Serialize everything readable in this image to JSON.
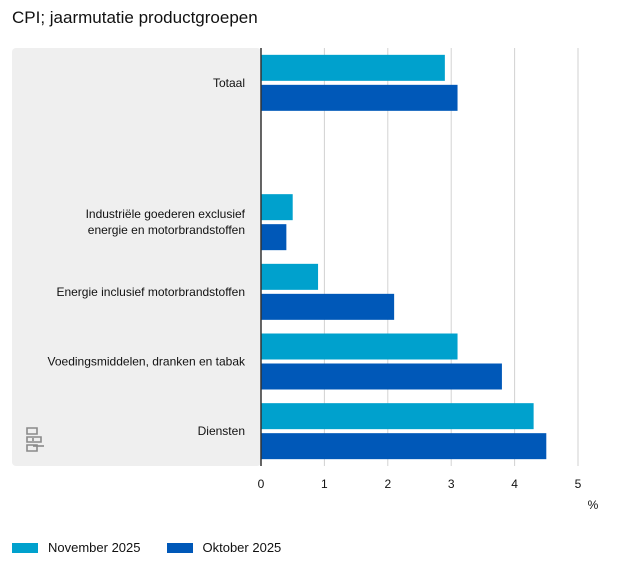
{
  "title": "CPI; jaarmutatie productgroepen",
  "chart_data": {
    "type": "bar",
    "orientation": "horizontal",
    "title": "CPI; jaarmutatie productgroepen",
    "categories": [
      {
        "label": [
          "Totaal"
        ]
      },
      {
        "label": [
          ""
        ]
      },
      {
        "label": [
          "Industriële goederen exclusief",
          "energie en motorbrandstoffen"
        ]
      },
      {
        "label": [
          "Energie inclusief motorbrandstoffen"
        ]
      },
      {
        "label": [
          "Voedingsmiddelen, dranken en tabak"
        ]
      },
      {
        "label": [
          "Diensten"
        ]
      }
    ],
    "series": [
      {
        "name": "November 2025",
        "color": "#00a1cd",
        "values": [
          2.9,
          null,
          0.5,
          0.9,
          3.1,
          4.3
        ]
      },
      {
        "name": "Oktober 2025",
        "color": "#0058b8",
        "values": [
          3.1,
          null,
          0.4,
          2.1,
          3.8,
          4.5
        ]
      }
    ],
    "xlim": [
      0,
      5
    ],
    "xticks": [
      0,
      1,
      2,
      3,
      4,
      5
    ],
    "xlabel": "%",
    "grid": true,
    "legend_position": "bottom-left"
  }
}
